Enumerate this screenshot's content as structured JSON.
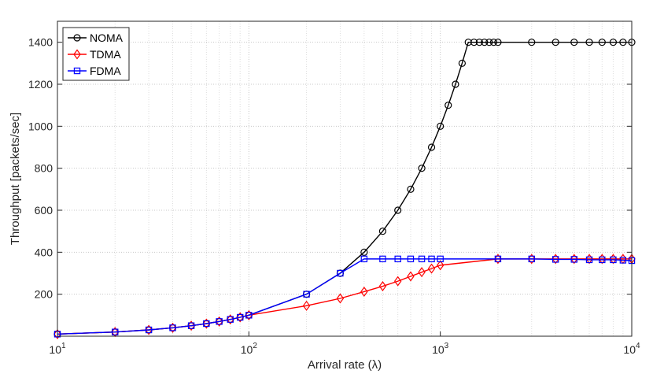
{
  "chart_data": {
    "type": "line",
    "title": "",
    "xlabel": "Arrival rate (λ)",
    "ylabel": "Throughput [packets/sec]",
    "xscale": "log",
    "xlim": [
      10,
      10000
    ],
    "ylim": [
      0,
      1500
    ],
    "x_ticks": [
      {
        "value": 10,
        "base": "10",
        "exp": "1"
      },
      {
        "value": 100,
        "base": "10",
        "exp": "2"
      },
      {
        "value": 1000,
        "base": "10",
        "exp": "3"
      },
      {
        "value": 10000,
        "base": "10",
        "exp": "4"
      }
    ],
    "y_ticks": [
      200,
      400,
      600,
      800,
      1000,
      1200,
      1400
    ],
    "grid": true,
    "legend_position": "top-left",
    "series": [
      {
        "name": "NOMA",
        "color": "#000000",
        "marker": "circle",
        "points": [
          [
            10,
            10
          ],
          [
            20,
            20
          ],
          [
            30,
            30
          ],
          [
            40,
            40
          ],
          [
            50,
            50
          ],
          [
            60,
            60
          ],
          [
            70,
            70
          ],
          [
            80,
            80
          ],
          [
            90,
            90
          ],
          [
            100,
            100
          ],
          [
            200,
            200
          ],
          [
            300,
            300
          ],
          [
            400,
            400
          ],
          [
            500,
            500
          ],
          [
            600,
            600
          ],
          [
            700,
            700
          ],
          [
            800,
            800
          ],
          [
            900,
            900
          ],
          [
            1000,
            1000
          ],
          [
            1100,
            1100
          ],
          [
            1200,
            1200
          ],
          [
            1300,
            1300
          ],
          [
            1400,
            1400
          ],
          [
            1500,
            1400
          ],
          [
            1600,
            1400
          ],
          [
            1700,
            1400
          ],
          [
            1800,
            1400
          ],
          [
            1900,
            1400
          ],
          [
            2000,
            1400
          ],
          [
            3000,
            1400
          ],
          [
            4000,
            1400
          ],
          [
            5000,
            1400
          ],
          [
            6000,
            1400
          ],
          [
            7000,
            1400
          ],
          [
            8000,
            1400
          ],
          [
            9000,
            1400
          ],
          [
            10000,
            1400
          ]
        ]
      },
      {
        "name": "TDMA",
        "color": "#ff0000",
        "marker": "diamond",
        "points": [
          [
            10,
            10
          ],
          [
            20,
            20
          ],
          [
            30,
            30
          ],
          [
            40,
            40
          ],
          [
            50,
            50
          ],
          [
            60,
            60
          ],
          [
            70,
            70
          ],
          [
            80,
            80
          ],
          [
            90,
            90
          ],
          [
            100,
            100
          ],
          [
            200,
            145
          ],
          [
            300,
            180
          ],
          [
            400,
            212
          ],
          [
            500,
            238
          ],
          [
            600,
            262
          ],
          [
            700,
            285
          ],
          [
            800,
            305
          ],
          [
            900,
            322
          ],
          [
            1000,
            338
          ],
          [
            2000,
            368
          ],
          [
            3000,
            368
          ],
          [
            4000,
            368
          ],
          [
            5000,
            368
          ],
          [
            6000,
            368
          ],
          [
            7000,
            368
          ],
          [
            8000,
            368
          ],
          [
            9000,
            368
          ],
          [
            10000,
            368
          ]
        ]
      },
      {
        "name": "FDMA",
        "color": "#0000ff",
        "marker": "square",
        "points": [
          [
            10,
            10
          ],
          [
            20,
            20
          ],
          [
            30,
            30
          ],
          [
            40,
            40
          ],
          [
            50,
            50
          ],
          [
            60,
            60
          ],
          [
            70,
            70
          ],
          [
            80,
            80
          ],
          [
            90,
            90
          ],
          [
            100,
            100
          ],
          [
            200,
            200
          ],
          [
            300,
            300
          ],
          [
            400,
            368
          ],
          [
            500,
            368
          ],
          [
            600,
            368
          ],
          [
            700,
            368
          ],
          [
            800,
            368
          ],
          [
            900,
            368
          ],
          [
            1000,
            368
          ],
          [
            2000,
            368
          ],
          [
            3000,
            368
          ],
          [
            4000,
            366
          ],
          [
            5000,
            366
          ],
          [
            6000,
            364
          ],
          [
            7000,
            364
          ],
          [
            8000,
            364
          ],
          [
            9000,
            362
          ],
          [
            10000,
            360
          ]
        ]
      }
    ]
  }
}
